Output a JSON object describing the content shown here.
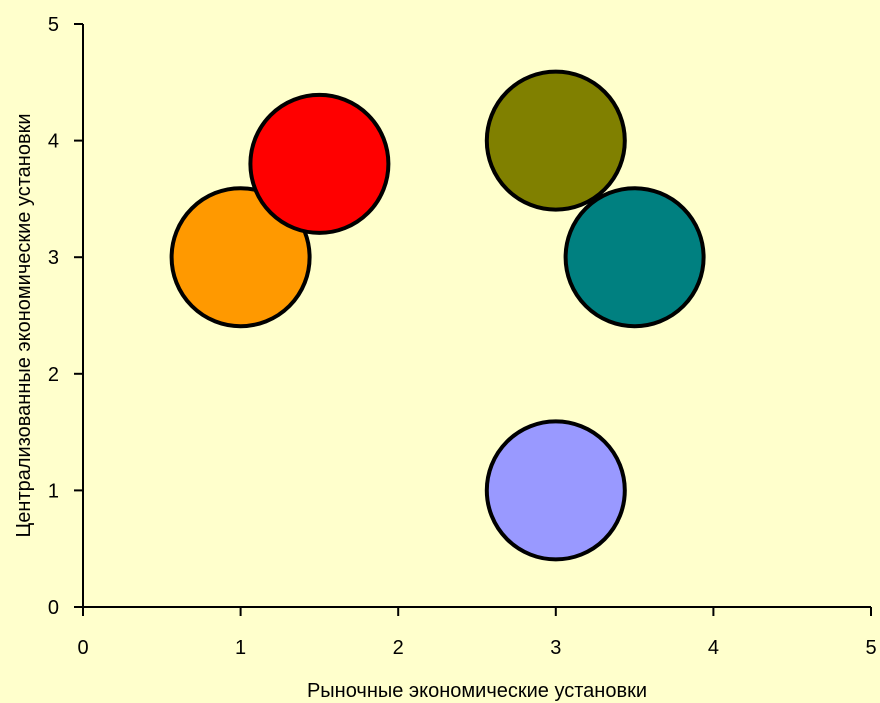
{
  "chart_data": {
    "type": "bubble",
    "title": "",
    "xlabel": "Рыночные экономические установки",
    "ylabel": "Централизованные экономические установки",
    "xlim": [
      0,
      5
    ],
    "ylim": [
      0,
      5
    ],
    "x_ticks": [
      "0",
      "1",
      "2",
      "3",
      "4",
      "5"
    ],
    "y_ticks": [
      "0",
      "1",
      "2",
      "3",
      "4",
      "5"
    ],
    "grid": false,
    "legend": "none",
    "background": "#FFFFCC",
    "points": [
      {
        "x": 1.0,
        "y": 3.0,
        "size": 1,
        "color": "#FF9900"
      },
      {
        "x": 1.5,
        "y": 3.8,
        "size": 1,
        "color": "#FF0000"
      },
      {
        "x": 3.0,
        "y": 4.0,
        "size": 1,
        "color": "#808000"
      },
      {
        "x": 3.5,
        "y": 3.0,
        "size": 1,
        "color": "#008080"
      },
      {
        "x": 3.0,
        "y": 1.0,
        "size": 1,
        "color": "#9999FF"
      }
    ]
  }
}
